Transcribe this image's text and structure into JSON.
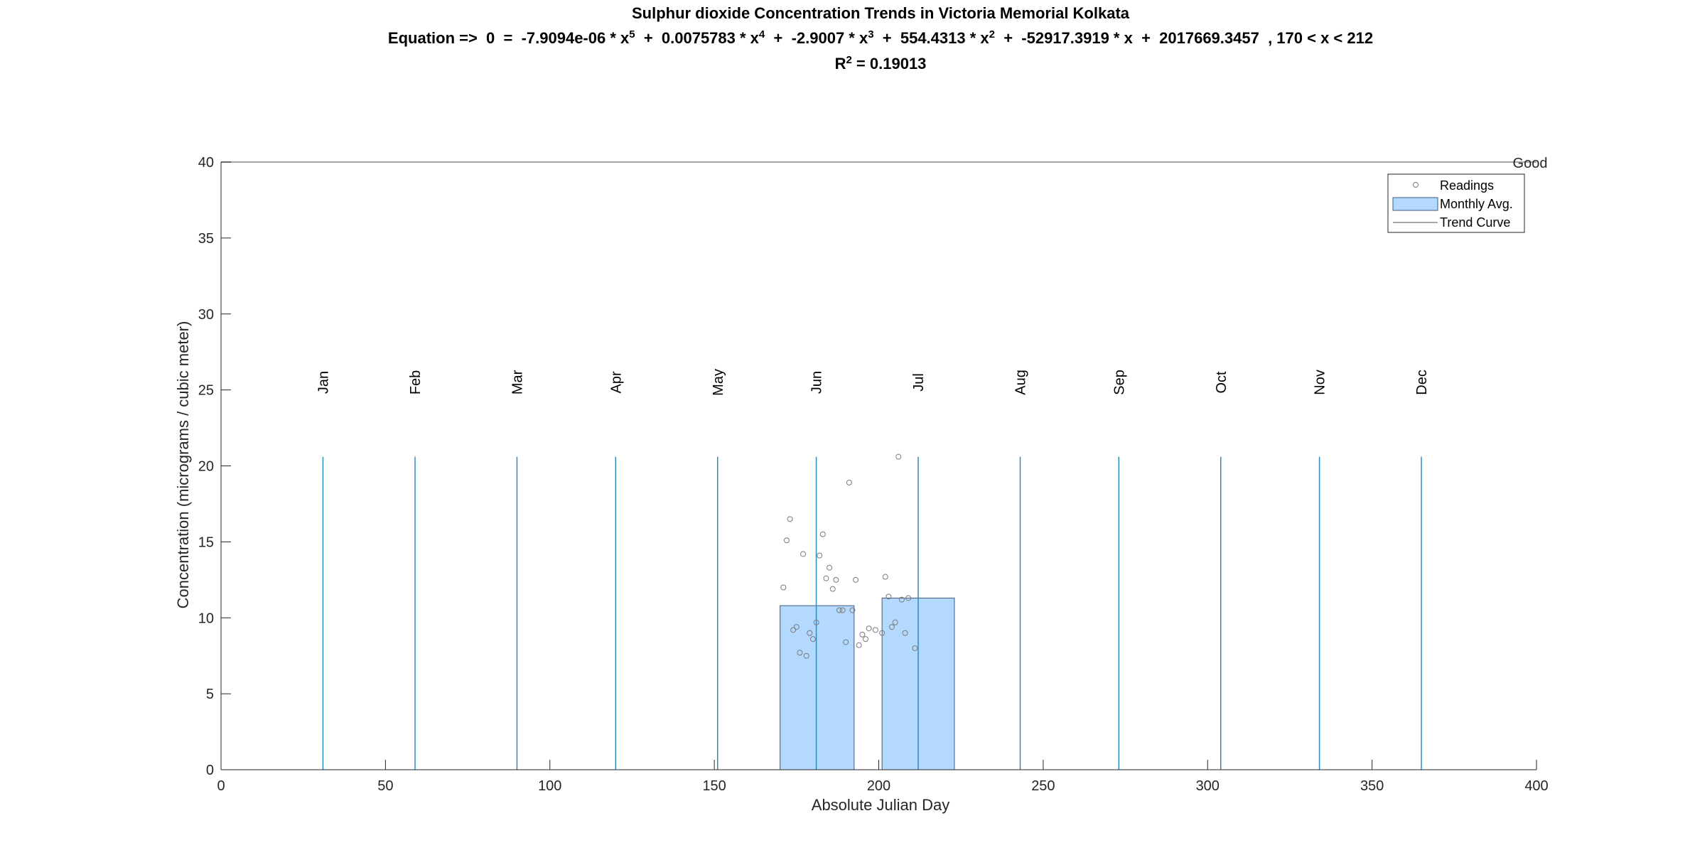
{
  "chart_data": {
    "type": "bar",
    "title": "Sulphur dioxide Concentration Trends in Victoria Memorial Kolkata",
    "equation_prefix": "Equation =>  0  =  ",
    "equation_terms": [
      {
        "coef": "-7.9094e-06",
        "var": "x",
        "exp": "5"
      },
      {
        "coef": "0.0075783",
        "var": "x",
        "exp": "4"
      },
      {
        "coef": "-2.9007",
        "var": "x",
        "exp": "3"
      },
      {
        "coef": "554.4313",
        "var": "x",
        "exp": "2"
      },
      {
        "coef": "-52917.3919",
        "var": "x",
        "exp": ""
      },
      {
        "coef": "2017669.3457",
        "var": "",
        "exp": ""
      }
    ],
    "equation_range": ", 170 < x < 212",
    "r2_label": "R",
    "r2_exp": "2",
    "r2_value": " = 0.19013",
    "coefficients": [
      -7.9094e-06,
      0.0075783,
      -2.9007,
      554.4313,
      -52917.3919,
      2017669.3457
    ],
    "fit_range": [
      170,
      212
    ],
    "xlabel": "Absolute Julian Day",
    "ylabel": "Concentration (micrograms / cubic meter)",
    "xlim": [
      0,
      400
    ],
    "ylim": [
      0,
      40
    ],
    "xticks": [
      0,
      50,
      100,
      150,
      200,
      250,
      300,
      350,
      400
    ],
    "yticks": [
      0,
      5,
      10,
      15,
      20,
      25,
      30,
      35,
      40
    ],
    "threshold": {
      "label": "Good",
      "value": 40
    },
    "months": [
      {
        "label": "Jan",
        "day": 31
      },
      {
        "label": "Feb",
        "day": 59
      },
      {
        "label": "Mar",
        "day": 90
      },
      {
        "label": "Apr",
        "day": 120
      },
      {
        "label": "May",
        "day": 151
      },
      {
        "label": "Jun",
        "day": 181
      },
      {
        "label": "Jul",
        "day": 212
      },
      {
        "label": "Aug",
        "day": 243
      },
      {
        "label": "Sep",
        "day": 273
      },
      {
        "label": "Oct",
        "day": 304
      },
      {
        "label": "Nov",
        "day": 334
      },
      {
        "label": "Dec",
        "day": 365
      }
    ],
    "month_line_top": 20.6,
    "monthly_avg": [
      {
        "x0": 170,
        "x1": 192.5,
        "value": 10.8
      },
      {
        "x0": 201,
        "x1": 223,
        "value": 11.3
      }
    ],
    "readings": [
      [
        171,
        12.0
      ],
      [
        172,
        15.1
      ],
      [
        173,
        16.5
      ],
      [
        174,
        9.2
      ],
      [
        175,
        9.4
      ],
      [
        176,
        7.7
      ],
      [
        177,
        14.2
      ],
      [
        178,
        7.5
      ],
      [
        179,
        9.0
      ],
      [
        180,
        8.6
      ],
      [
        181,
        9.7
      ],
      [
        182,
        14.1
      ],
      [
        183,
        15.5
      ],
      [
        184,
        12.6
      ],
      [
        185,
        13.3
      ],
      [
        186,
        11.9
      ],
      [
        187,
        12.5
      ],
      [
        188,
        10.5
      ],
      [
        189,
        10.5
      ],
      [
        190,
        8.4
      ],
      [
        191,
        18.9
      ],
      [
        192,
        10.5
      ],
      [
        193,
        12.5
      ],
      [
        194,
        8.2
      ],
      [
        195,
        8.9
      ],
      [
        196,
        8.6
      ],
      [
        197,
        9.3
      ],
      [
        199,
        9.2
      ],
      [
        201,
        9.0
      ],
      [
        202,
        12.7
      ],
      [
        203,
        11.4
      ],
      [
        204,
        9.4
      ],
      [
        205,
        9.7
      ],
      [
        206,
        20.6
      ],
      [
        207,
        11.2
      ],
      [
        208,
        9.0
      ],
      [
        209,
        11.3
      ],
      [
        211,
        8.0
      ]
    ],
    "legend": {
      "position": "top-right",
      "entries": [
        "Readings",
        "Monthly Avg.",
        "Trend Curve"
      ]
    },
    "colors": {
      "bar_fill": "#b3d9ff",
      "bar_edge": "#3d5a80",
      "month_line": "#2e8bc0",
      "trend": "#0b3a66",
      "reading": "#7a7a7a",
      "threshold": "#a6a6a6",
      "axis": "#262626"
    }
  }
}
